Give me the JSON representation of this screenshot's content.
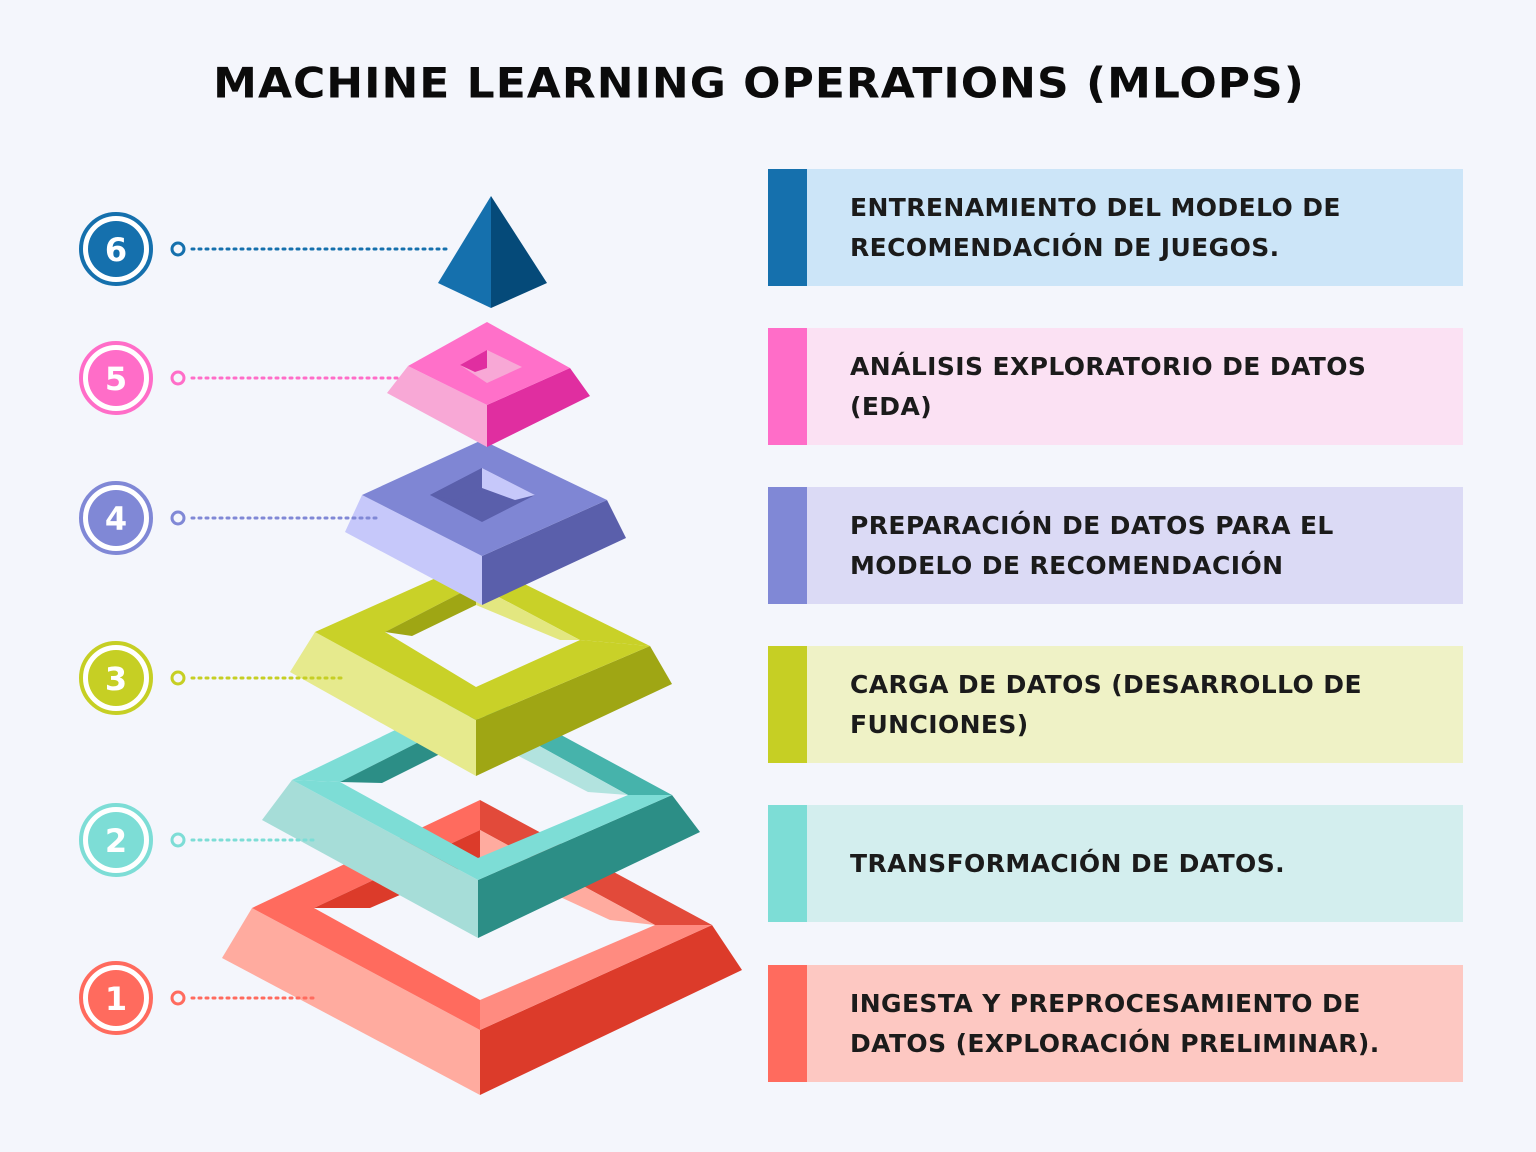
{
  "title": "MACHINE LEARNING OPERATIONS (MLOPS)",
  "steps": [
    {
      "number": "6",
      "text": "ENTRENAMIENTO DEL MODELO DE RECOMENDACIÓN DE JUEGOS.",
      "accent": "#1570ad",
      "bg": "#cce5f8"
    },
    {
      "number": "5",
      "text": "ANÁLISIS EXPLORATORIO DE DATOS (EDA)",
      "accent": "#ff6dc8",
      "bg": "#fbe1f3"
    },
    {
      "number": "4",
      "text": "PREPARACIÓN DE DATOS PARA EL MODELO DE RECOMENDACIÓN",
      "accent": "#8088d6",
      "bg": "#dbdaf5"
    },
    {
      "number": "3",
      "text": "CARGA DE DATOS (DESARROLLO DE FUNCIONES)",
      "accent": "#c6cf24",
      "bg": "#eff2c6"
    },
    {
      "number": "2",
      "text": "TRANSFORMACIÓN DE DATOS.",
      "accent": "#7dddd6",
      "bg": "#d3eeee"
    },
    {
      "number": "1",
      "text": "INGESTA Y PREPROCESAMIENTO DE DATOS (EXPLORACIÓN PRELIMINAR).",
      "accent": "#ff6b5e",
      "bg": "#fdc8c2"
    }
  ]
}
